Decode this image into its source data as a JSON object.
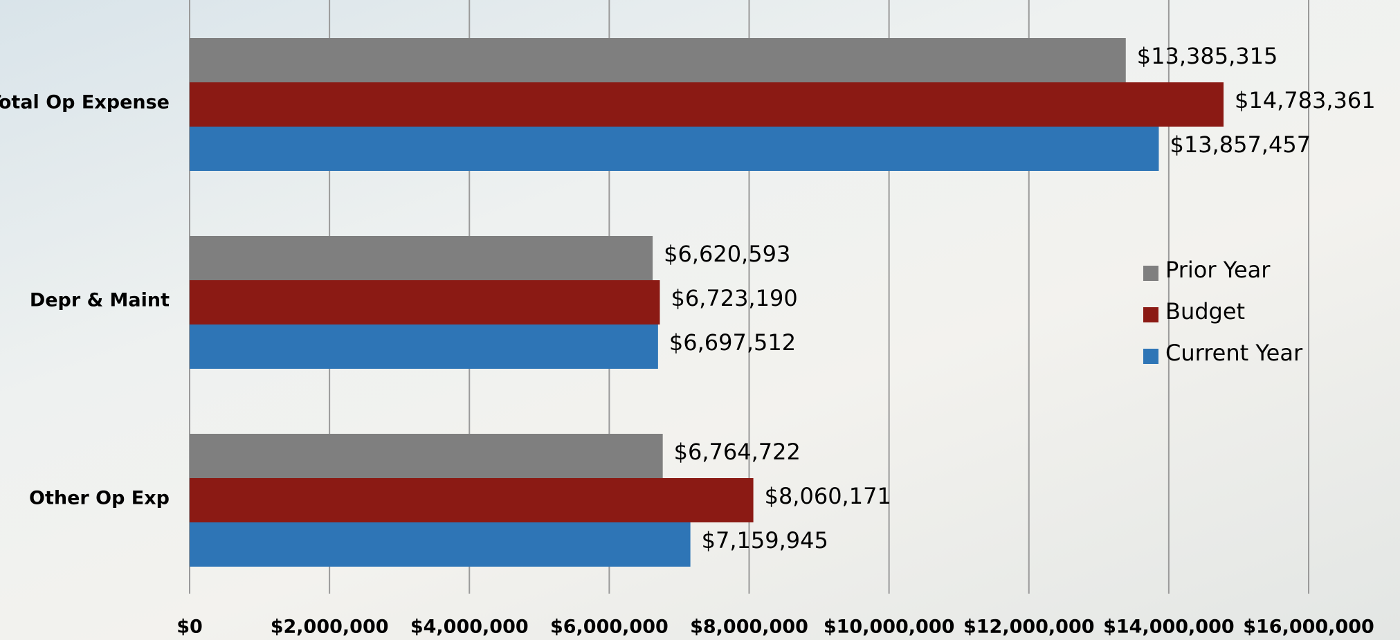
{
  "chart_data": {
    "type": "hbar",
    "categories": [
      "Total Op Expense",
      "Depr & Maint",
      "Other Op Exp"
    ],
    "series": [
      {
        "name": "Prior Year",
        "color": "#7f7f7f",
        "values": [
          13385315,
          6620593,
          6764722
        ],
        "value_labels": [
          "$13,385,315",
          "$6,620,593",
          "$6,764,722"
        ]
      },
      {
        "name": "Budget",
        "color": "#8b1a14",
        "values": [
          14783361,
          6723190,
          8060171
        ],
        "value_labels": [
          "$14,783,361",
          "$6,723,190",
          "$8,060,171"
        ]
      },
      {
        "name": "Current Year",
        "color": "#2e75b6",
        "values": [
          13857457,
          6697512,
          7159945
        ],
        "value_labels": [
          "$13,857,457",
          "$6,697,512",
          "$7,159,945"
        ]
      }
    ],
    "xlim": [
      0,
      16000000
    ],
    "xticks": [
      {
        "value": 0,
        "label": "$0"
      },
      {
        "value": 2000000,
        "label": "$2,000,000"
      },
      {
        "value": 4000000,
        "label": "$4,000,000"
      },
      {
        "value": 6000000,
        "label": "$6,000,000"
      },
      {
        "value": 8000000,
        "label": "$8,000,000"
      },
      {
        "value": 10000000,
        "label": "$10,000,000"
      },
      {
        "value": 12000000,
        "label": "$12,000,000"
      },
      {
        "value": 14000000,
        "label": "$14,000,000"
      },
      {
        "value": 16000000,
        "label": "$16,000,000"
      }
    ],
    "grid": true,
    "legend": "right"
  }
}
